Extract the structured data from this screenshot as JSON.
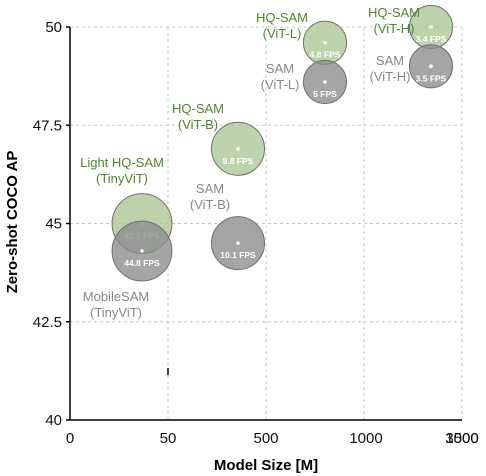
{
  "chart_data": {
    "type": "scatter",
    "title": "",
    "xlabel": "Model Size [M]",
    "ylabel": "Zero-shot COCO AP",
    "x_ticks": [
      "0",
      "50",
      "500",
      "1000",
      "1500",
      "3000"
    ],
    "y_ticks": [
      "40",
      "42.5",
      "45",
      "47.5",
      "50"
    ],
    "ylim": [
      40,
      50
    ],
    "grid": true,
    "points": [
      {
        "name": "Light HQ-SAM",
        "sub": "(TinyViT)",
        "fps": "41.2 FPS",
        "x": 35,
        "y": 45.0,
        "color": "#a9c795",
        "label_color": "#4a8a2a",
        "size": 0.88
      },
      {
        "name": "MobileSAM",
        "sub": "(TinyViT)",
        "fps": "44.8 FPS",
        "x": 35,
        "y": 44.3,
        "color": "#8c8c8c",
        "label_color": "#888888",
        "size": 0.88
      },
      {
        "name": "HQ-SAM",
        "sub": "(ViT-B)",
        "fps": "9.8 FPS",
        "x": 350,
        "y": 46.9,
        "color": "#a9c795",
        "label_color": "#4a8a2a",
        "size": 0.78
      },
      {
        "name": "SAM",
        "sub": "(ViT-B)",
        "fps": "10.1 FPS",
        "x": 350,
        "y": 44.5,
        "color": "#8c8c8c",
        "label_color": "#888888",
        "size": 0.78
      },
      {
        "name": "HQ-SAM",
        "sub": "(ViT-L)",
        "fps": "4.8 FPS",
        "x": 1180,
        "y": 49.6,
        "color": "#a9c795",
        "label_color": "#4a8a2a",
        "size": 0.4
      },
      {
        "name": "SAM",
        "sub": "(ViT-L)",
        "fps": "5 FPS",
        "x": 1180,
        "y": 48.6,
        "color": "#8c8c8c",
        "label_color": "#888888",
        "size": 0.4
      },
      {
        "name": "HQ-SAM",
        "sub": "(ViT-H)",
        "fps": "3.4 FPS",
        "x": 2350,
        "y": 50.0,
        "color": "#a9c795",
        "label_color": "#4a8a2a",
        "size": 0.4
      },
      {
        "name": "SAM",
        "sub": "(ViT-H)",
        "fps": "3.5 FPS",
        "x": 2350,
        "y": 49.0,
        "color": "#8c8c8c",
        "label_color": "#888888",
        "size": 0.4
      }
    ]
  }
}
